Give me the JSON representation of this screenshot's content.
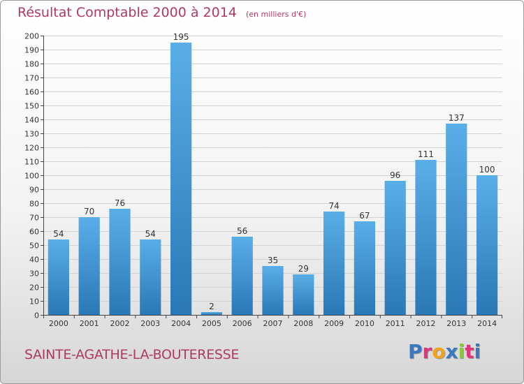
{
  "header": {
    "title": "Résultat Comptable 2000 à 2014",
    "subtitle": "(en milliers d'€)"
  },
  "footer": {
    "commune": "SAINTE-AGATHE-LA-BOUTERESSE",
    "brand": "Proxiti",
    "brand_colors": [
      "#3a78c2",
      "#e0357a",
      "#f3a21f",
      "#3a78c2",
      "#8cc63e",
      "#e0357a",
      "#3a78c2"
    ]
  },
  "chart_data": {
    "type": "bar",
    "title": "Résultat Comptable 2000 à 2014",
    "subtitle": "(en milliers d'€)",
    "categories": [
      "2000",
      "2001",
      "2002",
      "2003",
      "2004",
      "2005",
      "2006",
      "2007",
      "2008",
      "2009",
      "2010",
      "2011",
      "2012",
      "2013",
      "2014"
    ],
    "values": [
      54,
      70,
      76,
      54,
      195,
      2,
      56,
      35,
      29,
      74,
      67,
      96,
      111,
      137,
      100
    ],
    "ylim": [
      0,
      200
    ],
    "yticks": [
      0,
      10,
      20,
      30,
      40,
      50,
      60,
      70,
      80,
      90,
      100,
      110,
      120,
      130,
      140,
      150,
      160,
      170,
      180,
      190,
      200
    ],
    "grid": true,
    "legend": "none",
    "bar_color_top": "#5aaee8",
    "bar_color_bottom": "#2a78b6"
  }
}
